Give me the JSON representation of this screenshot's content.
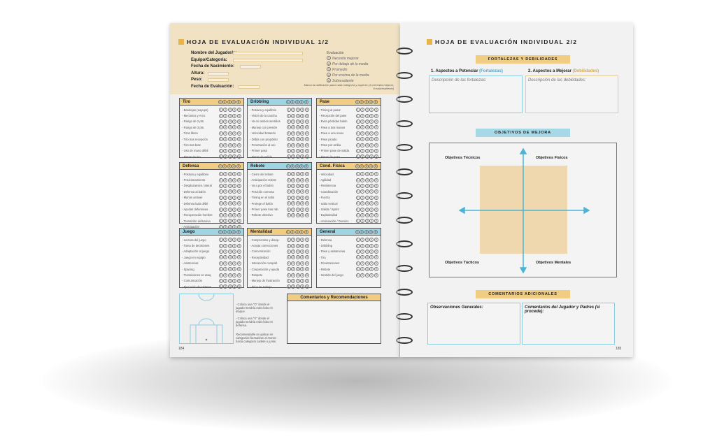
{
  "left_page": {
    "title": "HOJA DE EVALUACIÓN INDIVIDUAL 1/2",
    "fields": [
      "Nombre del Jugador/a:",
      "Equipo/Categoría:",
      "Fecha de Nacimiento:",
      "Altura:",
      "Peso:",
      "Fecha de Evaluación:"
    ],
    "legend_title": "Evaluación",
    "legend": [
      "Necesita mejorar",
      "Por debajo de la media",
      "Promedio",
      "Por encima de la media",
      "Sobresaliente"
    ],
    "legend_note": "Marca la calificación para cada categoría y aspecto (1=necesita mejorar, 5=sobresaliente)",
    "categories": [
      {
        "name": "Tiro",
        "color": "y",
        "items": [
          "Bandejas (Layups)",
          "Mecánica y Arco",
          "Rango de 2 pts.",
          "Rango de 3 pts.",
          "Tiros libres",
          "Tiro tras recepción",
          "Tiro tras bote",
          "Uso de mano débil",
          "Fintas de tiro"
        ]
      },
      {
        "name": "Dribbling",
        "color": "b",
        "items": [
          "Postura y equilibrio",
          "Visión de la cancha",
          "Va en ambos sentidos",
          "Manejo con presión",
          "Velocidad botando",
          "Dribla con propósito",
          "Penetración al aro",
          "Primer paso",
          "Fintas de salida"
        ]
      },
      {
        "name": "Pase",
        "color": "y",
        "items": [
          "Timing al pasar",
          "Recepción del pase",
          "Evita pérdidas balón",
          "Pase a dos manos",
          "Pase a una mano",
          "Pase picado",
          "Pase por arriba",
          "Primer pase de salida",
          "Fintas de pase"
        ]
      },
      {
        "name": "Defensa",
        "color": "y",
        "items": [
          "Postura y equilibrio",
          "Posicionamiento",
          "Desplazamien. lateral",
          "Defensa al balón",
          "Manos activas",
          "Defensa lado débil",
          "Ayudas defensivas",
          "Recuperación hombre",
          "Transición defensiva",
          "Anticipación"
        ]
      },
      {
        "name": "Rebote",
        "color": "b",
        "items": [
          "Cierre del rebote",
          "Anticipación rebote",
          "Va a por el balón",
          "Posición correcta",
          "Timing en el salto",
          "Protege el balón",
          "Primer pase tras reb.",
          "Rebote ofensivo"
        ]
      },
      {
        "name": "Cond. Física",
        "color": "y",
        "items": [
          "Velocidad",
          "Agilidad",
          "Resistencia",
          "Coordinación",
          "Fuerza",
          "Salto vertical",
          "Salida / Sprint",
          "Explosividad",
          "Aceleración / Deceler."
        ]
      },
      {
        "name": "Juego",
        "color": "b",
        "items": [
          "Lectura del juego",
          "Toma de decisiones",
          "Adaptación al juego",
          "Juego en equipo",
          "Asistencias",
          "Spacing",
          "Transiciones en ataq.",
          "Comunicación",
          "Ejecución de sistema"
        ]
      },
      {
        "name": "Mentalidad",
        "color": "y",
        "items": [
          "Compromiso y discip.",
          "Acepta correcciones",
          "Concentración",
          "Receptividad",
          "Interacción compañ.",
          "Cooperación y ayuda",
          "Respeto",
          "Manejo de frustración",
          "Ética de trabajo"
        ]
      },
      {
        "name": "General",
        "color": "b",
        "items": [
          "Defensa",
          "Dribbling",
          "Pase y asistencias",
          "Tiro",
          "Penetraciones",
          "Rebote",
          "Sentido del juego"
        ]
      }
    ],
    "scale": [
      "1",
      "2",
      "3",
      "4",
      "5"
    ],
    "court_note_1": "- Coloca una \"O\" donde el jugador tendría más éxito en ataque.",
    "court_note_2": "- Coloca una \"X\" donde el jugador tendría más éxito en defensa.",
    "court_note_3": "Recomendable no aplicar en categorías formativas al menos hasta categoría cadete o junior.",
    "comments_title": "Comentarios y Recomendaciones",
    "page_number": "184"
  },
  "right_page": {
    "title": "HOJA DE EVALUACIÓN INDIVIDUAL 2/2",
    "strengths_header": "FORTALEZAS Y DEBILIDADES",
    "strengths_label": "1. Aspectos a Potenciar ",
    "strengths_tag": "(Fortalezas)",
    "weak_label": "2. Aspectos a Mejorar ",
    "weak_tag": "(Debilidades)",
    "strengths_placeholder": "Descripción de las fortalezas:",
    "weak_placeholder": "Descripción de las debilidades:",
    "goals_header": "OBJETIVOS DE MEJORA",
    "goals": {
      "technical": "Objetivos Técnicos",
      "physical": "Objetivos Físicos",
      "tactical": "Objetivos Tácticos",
      "mental": "Objetivos Mentales"
    },
    "comments_header": "COMENTARIOS ADICIONALES",
    "general_obs": "Observaciones Generales:",
    "player_comments": "Comentarios del Jugador y Padres (si procede):",
    "page_number": "185"
  },
  "colors": {
    "accent_yellow": "#f0cd82",
    "accent_blue": "#9fd4e3",
    "square": "#e9b447",
    "arrow": "#4fb3d3"
  }
}
